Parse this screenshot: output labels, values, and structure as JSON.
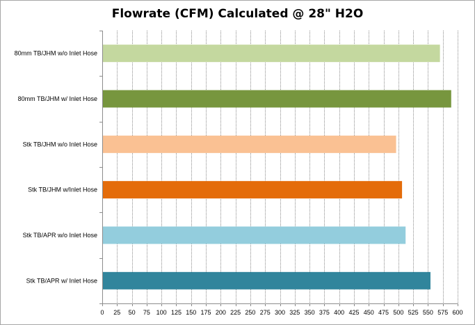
{
  "chart_data": {
    "type": "bar",
    "orientation": "horizontal",
    "title": "Flowrate (CFM) Calculated @ 28\" H2O",
    "xlabel": "",
    "ylabel": "",
    "xlim": [
      0,
      600
    ],
    "xticks": [
      0,
      25,
      50,
      75,
      100,
      125,
      150,
      175,
      200,
      225,
      250,
      275,
      300,
      325,
      350,
      375,
      400,
      425,
      450,
      475,
      500,
      525,
      550,
      575,
      600
    ],
    "grid": true,
    "legend": "none",
    "categories": [
      "80mm TB/JHM w/o Inlet Hose",
      "80mm TB/JHM w/ Inlet Hose",
      "Stk TB/JHM w/o Inlet Hose",
      "Stk TB/JHM w/Inlet Hose",
      "Stk TB/APR w/o Inlet Hose",
      "Stk TB/APR w/ Inlet Hose"
    ],
    "values": [
      569,
      588,
      495,
      505,
      511,
      553
    ],
    "colors": [
      "#c4d89f",
      "#77963e",
      "#fac193",
      "#e46c0a",
      "#93cddd",
      "#31859c"
    ]
  }
}
